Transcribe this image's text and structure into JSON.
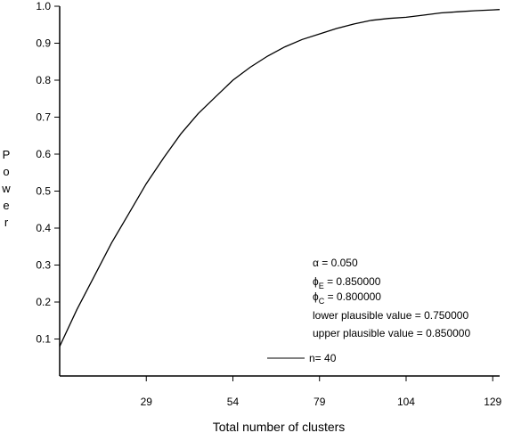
{
  "chart_data": {
    "type": "line",
    "xlabel": "Total number of clusters",
    "ylabel": "Power",
    "xlim": [
      4,
      131
    ],
    "ylim": [
      0.0,
      1.0
    ],
    "x_ticks": [
      29,
      54,
      79,
      104,
      129
    ],
    "x_tick_labels": [
      "29",
      "54",
      "79",
      "104",
      "129"
    ],
    "y_ticks": [
      0.1,
      0.2,
      0.3,
      0.4,
      0.5,
      0.6,
      0.7,
      0.8,
      0.9,
      1.0
    ],
    "y_tick_labels": [
      "0.1",
      "0.2",
      "0.3",
      "0.4",
      "0.5",
      "0.6",
      "0.7",
      "0.8",
      "0.9",
      "1.0"
    ],
    "grid": false,
    "series": [
      {
        "name": "n= 40",
        "color": "#000000",
        "x": [
          4,
          9,
          14,
          19,
          24,
          29,
          34,
          39,
          44,
          49,
          54,
          59,
          64,
          69,
          74,
          79,
          84,
          89,
          94,
          99,
          104,
          109,
          114,
          119,
          124,
          129,
          131
        ],
        "y": [
          0.08,
          0.18,
          0.27,
          0.36,
          0.44,
          0.52,
          0.59,
          0.655,
          0.71,
          0.755,
          0.8,
          0.835,
          0.865,
          0.89,
          0.91,
          0.925,
          0.94,
          0.952,
          0.962,
          0.967,
          0.97,
          0.976,
          0.982,
          0.985,
          0.988,
          0.99,
          0.991
        ]
      }
    ],
    "legend_placement": "bottom-right",
    "annotations": {
      "alpha_label": "α = 0.050",
      "phi_e": {
        "main": "ϕ",
        "sub": "E",
        "rest": " = 0.850000"
      },
      "phi_c": {
        "main": "ϕ",
        "sub": "C",
        "rest": " = 0.800000"
      },
      "lower": "lower plausible value = 0.750000",
      "upper": "upper plausible value = 0.850000"
    }
  }
}
